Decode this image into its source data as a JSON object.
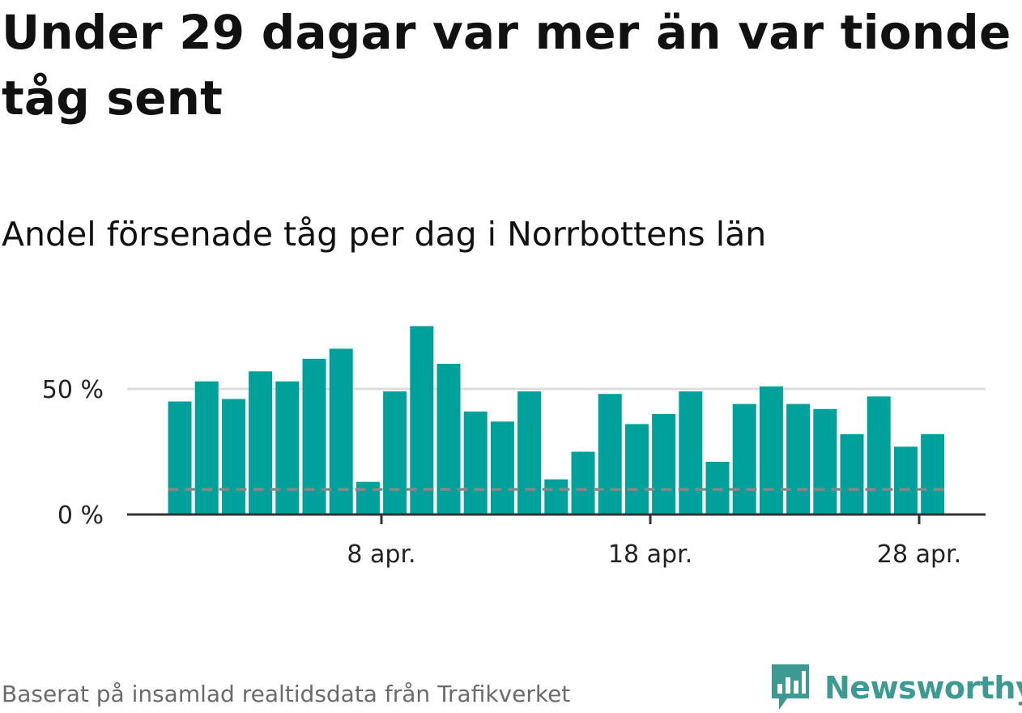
{
  "title": "Under 29 dagar var mer än var tionde tåg sent",
  "subtitle": "Andel försenade tåg per dag i Norrbottens län",
  "footer": "Baserat på insamlad realtidsdata från Trafikverket",
  "brand": {
    "name": "Newsworthy",
    "icon": "newsworthy-logo-icon",
    "color": "#3c9a92"
  },
  "colors": {
    "bar": "#00a19a",
    "axis": "#333333",
    "grid": "#dddddd",
    "reference": "#888888"
  },
  "chart_data": {
    "type": "bar",
    "title": "Andel försenade tåg per dag i Norrbottens län",
    "xlabel": "",
    "ylabel": "",
    "x_range": [
      1,
      30
    ],
    "x": [
      1,
      2,
      3,
      4,
      5,
      6,
      7,
      8,
      9,
      10,
      11,
      12,
      13,
      14,
      15,
      16,
      17,
      18,
      19,
      20,
      21,
      22,
      23,
      24,
      25,
      26,
      27,
      28,
      29
    ],
    "values": [
      45,
      53,
      46,
      57,
      53,
      62,
      66,
      13,
      49,
      75,
      60,
      41,
      37,
      49,
      14,
      25,
      48,
      36,
      40,
      49,
      21,
      44,
      51,
      44,
      42,
      32,
      47,
      27,
      32
    ],
    "value_unit": "%",
    "reference_line": 10,
    "ylim": [
      0,
      75
    ],
    "y_ticks": [
      {
        "value": 0,
        "label": "0 %"
      },
      {
        "value": 50,
        "label": "50 %"
      }
    ],
    "x_ticks": [
      {
        "value": 8,
        "label": "8 apr."
      },
      {
        "value": 18,
        "label": "18 apr."
      },
      {
        "value": 28,
        "label": "28 apr."
      }
    ],
    "grid": true,
    "legend": "none"
  }
}
